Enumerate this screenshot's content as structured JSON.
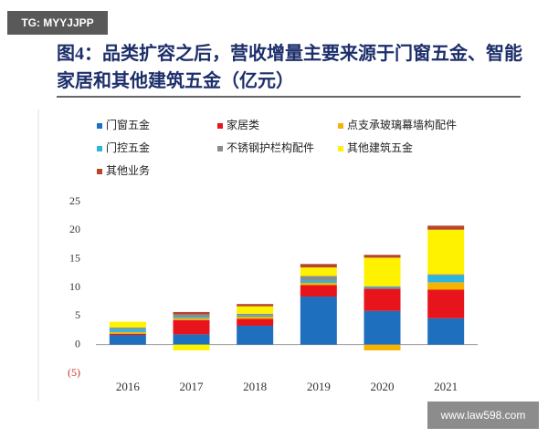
{
  "watermark": "TG: MYYJJPP",
  "watermark_url": "www.law598.com",
  "chart_data": {
    "type": "bar",
    "stacked": true,
    "title": "图4：品类扩容之后，营收增量主要来源于门窗五金、智能家居和其他建筑五金（亿元）",
    "categories": [
      "2016",
      "2017",
      "2018",
      "2019",
      "2020",
      "2021"
    ],
    "series": [
      {
        "name": "门窗五金",
        "color": "#1f6fbf",
        "values": [
          1.7,
          1.8,
          3.3,
          8.4,
          5.9,
          4.6
        ]
      },
      {
        "name": "家居类",
        "color": "#e8141b",
        "values": [
          0.2,
          2.5,
          1.2,
          2.0,
          3.9,
          5.0
        ]
      },
      {
        "name": "点支承玻璃幕墙构配件",
        "color": "#f5b400",
        "values": [
          0.3,
          0.3,
          0.4,
          0.4,
          -1.0,
          1.3
        ]
      },
      {
        "name": "门控五金",
        "color": "#2bb5e0",
        "values": [
          0.5,
          0.2,
          0.2,
          0.4,
          0.2,
          1.2
        ]
      },
      {
        "name": "不锈钢护栏构配件",
        "color": "#8c8c8c",
        "values": [
          0.3,
          0.5,
          0.3,
          0.8,
          0.2,
          0.2
        ]
      },
      {
        "name": "其他建筑五金",
        "color": "#fff200",
        "values": [
          1.0,
          -1.0,
          1.3,
          1.5,
          5.0,
          7.8
        ]
      },
      {
        "name": "其他业务",
        "color": "#b8452a",
        "values": [
          0,
          0.4,
          0.4,
          0.6,
          0.5,
          0.7
        ]
      }
    ],
    "ylim": [
      -5,
      25
    ],
    "yticks": [
      {
        "value": -5,
        "label": "(5)"
      },
      0,
      5,
      10,
      15,
      20,
      25
    ]
  }
}
